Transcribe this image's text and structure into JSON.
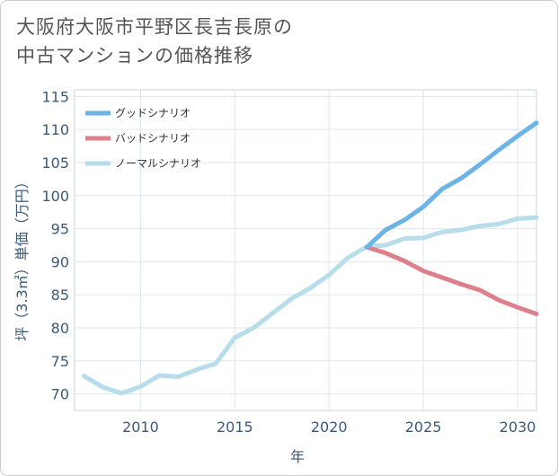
{
  "title": "大阪府大阪市平野区長吉長原の\n中古マンションの価格推移",
  "chart_data": {
    "type": "line",
    "xlabel": "年",
    "ylabel": "坪（3.3㎡）単価（万円）",
    "xlim": [
      2006.5,
      2031
    ],
    "ylim": [
      67.5,
      116
    ],
    "xticks": [
      2010,
      2015,
      2020,
      2025,
      2030
    ],
    "yticks": [
      70,
      75,
      80,
      85,
      90,
      95,
      100,
      105,
      110,
      115
    ],
    "grid": true,
    "legend_position": "top-left",
    "series": [
      {
        "name": "グッドシナリオ",
        "color": "#6cb3e6",
        "x": [
          2022,
          2023,
          2024,
          2025,
          2026,
          2027,
          2028,
          2029,
          2030,
          2031
        ],
        "y": [
          92.2,
          94.8,
          96.3,
          98.3,
          101.0,
          102.6,
          104.7,
          106.9,
          109.0,
          111.0
        ]
      },
      {
        "name": "バッドシナリオ",
        "color": "#de7f8c",
        "x": [
          2022,
          2023,
          2024,
          2025,
          2026,
          2027,
          2028,
          2029,
          2030,
          2031
        ],
        "y": [
          92.2,
          91.3,
          90.1,
          88.6,
          87.6,
          86.6,
          85.7,
          84.2,
          83.1,
          82.1
        ]
      },
      {
        "name": "ノーマルシナリオ",
        "color": "#b7dcea",
        "x": [
          2007,
          2008,
          2009,
          2010,
          2011,
          2012,
          2013,
          2014,
          2015,
          2016,
          2017,
          2018,
          2019,
          2020,
          2021,
          2022,
          2023,
          2024,
          2025,
          2026,
          2027,
          2028,
          2029,
          2030,
          2031
        ],
        "y": [
          72.7,
          71.0,
          70.1,
          71.1,
          72.8,
          72.6,
          73.7,
          74.6,
          78.5,
          80.0,
          82.2,
          84.4,
          86.0,
          88.0,
          90.6,
          92.3,
          92.5,
          93.5,
          93.6,
          94.5,
          94.8,
          95.4,
          95.7,
          96.5,
          96.7
        ]
      }
    ]
  }
}
